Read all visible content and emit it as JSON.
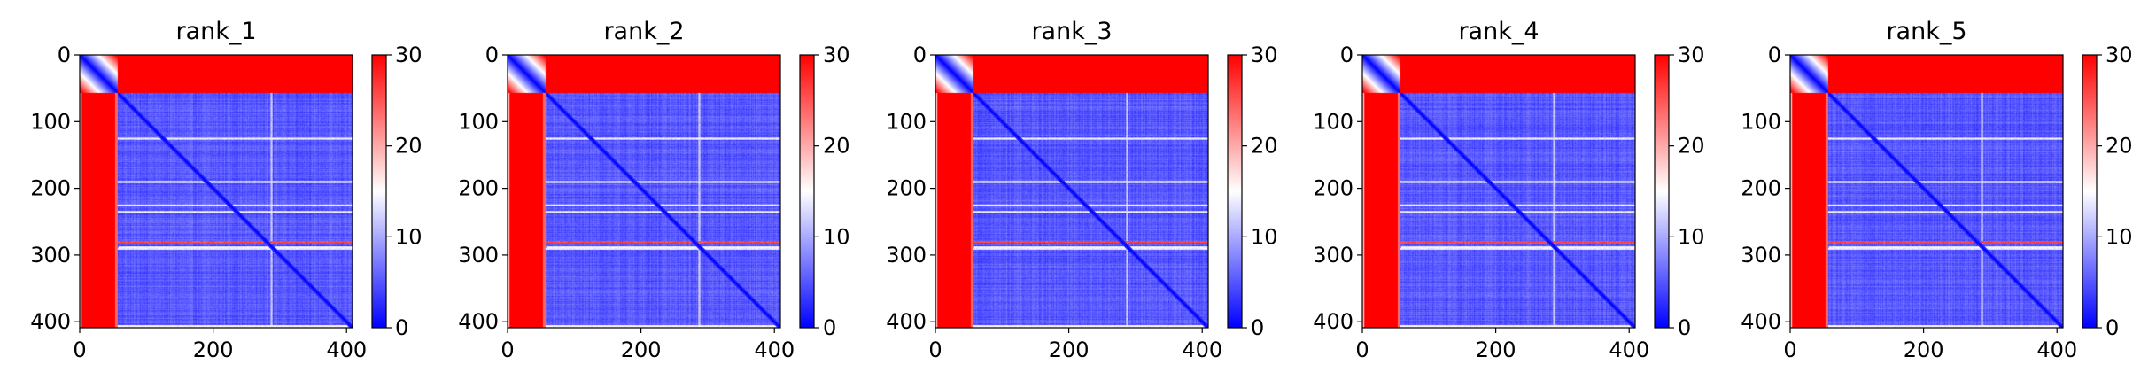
{
  "figure": {
    "colormap": "bwr",
    "colors": {
      "low": "#0000ff",
      "mid": "#ffffff",
      "high": "#ff0000",
      "axis": "#000000"
    }
  },
  "chart_data": [
    {
      "type": "heatmap",
      "title": "rank_1",
      "xlim": [
        0,
        409
      ],
      "ylim": [
        409,
        0
      ],
      "xticks": [
        0,
        200,
        400
      ],
      "xtick_labels": [
        "0",
        "200",
        "400"
      ],
      "yticks": [
        0,
        100,
        200,
        300,
        400
      ],
      "ytick_labels": [
        "0",
        "100",
        "200",
        "300",
        "400"
      ],
      "colorbar": {
        "range": [
          0,
          30
        ],
        "ticks": [
          0,
          10,
          20,
          30
        ],
        "tick_labels": [
          "0",
          "10",
          "20",
          "30"
        ]
      },
      "matrix_features": {
        "n": 409,
        "block_boundary": 57,
        "diagonal_value": 0,
        "top_right_block_value": 30,
        "bottom_left_block_value": 30,
        "bottom_right_block_value": 3,
        "white_rows": [
          125,
          190,
          225,
          235,
          290
        ],
        "red_row": 280,
        "white_column": 287
      }
    },
    {
      "type": "heatmap",
      "title": "rank_2",
      "xlim": [
        0,
        409
      ],
      "ylim": [
        409,
        0
      ],
      "xticks": [
        0,
        200,
        400
      ],
      "xtick_labels": [
        "0",
        "200",
        "400"
      ],
      "yticks": [
        0,
        100,
        200,
        300,
        400
      ],
      "ytick_labels": [
        "0",
        "100",
        "200",
        "300",
        "400"
      ],
      "colorbar": {
        "range": [
          0,
          30
        ],
        "ticks": [
          0,
          10,
          20,
          30
        ],
        "tick_labels": [
          "0",
          "10",
          "20",
          "30"
        ]
      },
      "matrix_features": {
        "n": 409,
        "block_boundary": 57,
        "diagonal_value": 0,
        "top_right_block_value": 30,
        "bottom_left_block_value": 30,
        "bottom_right_block_value": 3,
        "white_rows": [
          125,
          190,
          225,
          235,
          290
        ],
        "red_row": 280,
        "white_column": 287
      }
    },
    {
      "type": "heatmap",
      "title": "rank_3",
      "xlim": [
        0,
        409
      ],
      "ylim": [
        409,
        0
      ],
      "xticks": [
        0,
        200,
        400
      ],
      "xtick_labels": [
        "0",
        "200",
        "400"
      ],
      "yticks": [
        0,
        100,
        200,
        300,
        400
      ],
      "ytick_labels": [
        "0",
        "100",
        "200",
        "300",
        "400"
      ],
      "colorbar": {
        "range": [
          0,
          30
        ],
        "ticks": [
          0,
          10,
          20,
          30
        ],
        "tick_labels": [
          "0",
          "10",
          "20",
          "30"
        ]
      },
      "matrix_features": {
        "n": 409,
        "block_boundary": 57,
        "diagonal_value": 0,
        "top_right_block_value": 30,
        "bottom_left_block_value": 30,
        "bottom_right_block_value": 3,
        "white_rows": [
          125,
          190,
          225,
          235,
          290
        ],
        "red_row": 280,
        "white_column": 287
      }
    },
    {
      "type": "heatmap",
      "title": "rank_4",
      "xlim": [
        0,
        409
      ],
      "ylim": [
        409,
        0
      ],
      "xticks": [
        0,
        200,
        400
      ],
      "xtick_labels": [
        "0",
        "200",
        "400"
      ],
      "yticks": [
        0,
        100,
        200,
        300,
        400
      ],
      "ytick_labels": [
        "0",
        "100",
        "200",
        "300",
        "400"
      ],
      "colorbar": {
        "range": [
          0,
          30
        ],
        "ticks": [
          0,
          10,
          20,
          30
        ],
        "tick_labels": [
          "0",
          "10",
          "20",
          "30"
        ]
      },
      "matrix_features": {
        "n": 409,
        "block_boundary": 57,
        "diagonal_value": 0,
        "top_right_block_value": 30,
        "bottom_left_block_value": 30,
        "bottom_right_block_value": 3,
        "white_rows": [
          125,
          190,
          225,
          235,
          290
        ],
        "red_row": 280,
        "white_column": 287
      }
    },
    {
      "type": "heatmap",
      "title": "rank_5",
      "xlim": [
        0,
        409
      ],
      "ylim": [
        409,
        0
      ],
      "xticks": [
        0,
        200,
        400
      ],
      "xtick_labels": [
        "0",
        "200",
        "400"
      ],
      "yticks": [
        0,
        100,
        200,
        300,
        400
      ],
      "ytick_labels": [
        "0",
        "100",
        "200",
        "300",
        "400"
      ],
      "colorbar": {
        "range": [
          0,
          30
        ],
        "ticks": [
          0,
          10,
          20,
          30
        ],
        "tick_labels": [
          "0",
          "10",
          "20",
          "30"
        ]
      },
      "matrix_features": {
        "n": 409,
        "block_boundary": 57,
        "diagonal_value": 0,
        "top_right_block_value": 30,
        "bottom_left_block_value": 30,
        "bottom_right_block_value": 3,
        "white_rows": [
          125,
          190,
          225,
          235,
          290
        ],
        "red_row": 280,
        "white_column": 287
      }
    }
  ]
}
